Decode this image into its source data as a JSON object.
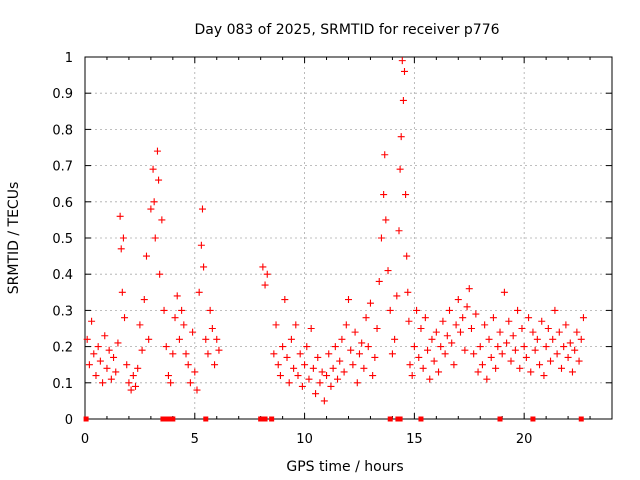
{
  "chart_data": {
    "type": "scatter",
    "title": "Day 083 of 2025, SRMTID for receiver p776",
    "xlabel": "GPS time / hours",
    "ylabel": "SRMTID / TECUs",
    "xlim": [
      0,
      24
    ],
    "ylim": [
      0,
      1
    ],
    "xticks": [
      0,
      5,
      10,
      15,
      20
    ],
    "yticks": [
      0,
      0.1,
      0.2,
      0.3,
      0.4,
      0.5,
      0.6,
      0.7,
      0.8,
      0.9,
      1
    ],
    "grid": true,
    "marker": "+",
    "color": "#ff0000",
    "series": [
      {
        "name": "SRMTID",
        "points": [
          [
            0.1,
            0.22
          ],
          [
            0.2,
            0.15
          ],
          [
            0.3,
            0.27
          ],
          [
            0.4,
            0.18
          ],
          [
            0.5,
            0.12
          ],
          [
            0.6,
            0.2
          ],
          [
            0.7,
            0.16
          ],
          [
            0.8,
            0.1
          ],
          [
            0.9,
            0.23
          ],
          [
            1.0,
            0.14
          ],
          [
            1.1,
            0.19
          ],
          [
            1.2,
            0.11
          ],
          [
            1.3,
            0.17
          ],
          [
            1.4,
            0.13
          ],
          [
            1.5,
            0.21
          ],
          [
            1.6,
            0.56
          ],
          [
            1.65,
            0.47
          ],
          [
            1.7,
            0.35
          ],
          [
            1.75,
            0.5
          ],
          [
            1.8,
            0.28
          ],
          [
            1.9,
            0.15
          ],
          [
            2.0,
            0.1
          ],
          [
            2.1,
            0.08
          ],
          [
            2.2,
            0.12
          ],
          [
            2.3,
            0.09
          ],
          [
            2.4,
            0.14
          ],
          [
            2.5,
            0.26
          ],
          [
            2.6,
            0.19
          ],
          [
            2.7,
            0.33
          ],
          [
            2.8,
            0.45
          ],
          [
            2.9,
            0.22
          ],
          [
            3.0,
            0.58
          ],
          [
            3.1,
            0.69
          ],
          [
            3.15,
            0.6
          ],
          [
            3.2,
            0.5
          ],
          [
            3.3,
            0.74
          ],
          [
            3.35,
            0.66
          ],
          [
            3.4,
            0.4
          ],
          [
            3.5,
            0.55
          ],
          [
            3.6,
            0.3
          ],
          [
            3.7,
            0.2
          ],
          [
            3.8,
            0.12
          ],
          [
            3.9,
            0.1
          ],
          [
            4.0,
            0.18
          ],
          [
            4.1,
            0.28
          ],
          [
            4.2,
            0.34
          ],
          [
            4.3,
            0.22
          ],
          [
            4.4,
            0.3
          ],
          [
            4.5,
            0.26
          ],
          [
            4.6,
            0.18
          ],
          [
            4.7,
            0.15
          ],
          [
            4.8,
            0.1
          ],
          [
            4.9,
            0.24
          ],
          [
            5.0,
            0.13
          ],
          [
            5.1,
            0.08
          ],
          [
            5.2,
            0.35
          ],
          [
            5.3,
            0.48
          ],
          [
            5.35,
            0.58
          ],
          [
            5.4,
            0.42
          ],
          [
            5.5,
            0.22
          ],
          [
            5.6,
            0.18
          ],
          [
            5.7,
            0.3
          ],
          [
            5.8,
            0.25
          ],
          [
            5.9,
            0.15
          ],
          [
            6.0,
            0.22
          ],
          [
            6.1,
            0.19
          ],
          [
            8.1,
            0.42
          ],
          [
            8.2,
            0.37
          ],
          [
            8.3,
            0.4
          ],
          [
            8.6,
            0.18
          ],
          [
            8.7,
            0.26
          ],
          [
            8.8,
            0.15
          ],
          [
            8.9,
            0.12
          ],
          [
            9.0,
            0.2
          ],
          [
            9.1,
            0.33
          ],
          [
            9.2,
            0.17
          ],
          [
            9.3,
            0.1
          ],
          [
            9.4,
            0.22
          ],
          [
            9.5,
            0.14
          ],
          [
            9.6,
            0.26
          ],
          [
            9.7,
            0.12
          ],
          [
            9.8,
            0.18
          ],
          [
            9.9,
            0.09
          ],
          [
            10.0,
            0.15
          ],
          [
            10.1,
            0.2
          ],
          [
            10.2,
            0.11
          ],
          [
            10.3,
            0.25
          ],
          [
            10.4,
            0.14
          ],
          [
            10.5,
            0.07
          ],
          [
            10.6,
            0.17
          ],
          [
            10.7,
            0.1
          ],
          [
            10.8,
            0.13
          ],
          [
            10.9,
            0.05
          ],
          [
            11.0,
            0.12
          ],
          [
            11.1,
            0.18
          ],
          [
            11.2,
            0.09
          ],
          [
            11.3,
            0.14
          ],
          [
            11.4,
            0.2
          ],
          [
            11.5,
            0.11
          ],
          [
            11.6,
            0.16
          ],
          [
            11.7,
            0.22
          ],
          [
            11.8,
            0.13
          ],
          [
            11.9,
            0.26
          ],
          [
            12.0,
            0.33
          ],
          [
            12.1,
            0.19
          ],
          [
            12.2,
            0.15
          ],
          [
            12.3,
            0.24
          ],
          [
            12.4,
            0.1
          ],
          [
            12.5,
            0.18
          ],
          [
            12.6,
            0.21
          ],
          [
            12.7,
            0.14
          ],
          [
            12.8,
            0.28
          ],
          [
            12.9,
            0.2
          ],
          [
            13.0,
            0.32
          ],
          [
            13.1,
            0.12
          ],
          [
            13.2,
            0.17
          ],
          [
            13.3,
            0.25
          ],
          [
            13.4,
            0.38
          ],
          [
            13.5,
            0.5
          ],
          [
            13.6,
            0.62
          ],
          [
            13.65,
            0.73
          ],
          [
            13.7,
            0.55
          ],
          [
            13.8,
            0.41
          ],
          [
            13.9,
            0.3
          ],
          [
            14.0,
            0.18
          ],
          [
            14.1,
            0.22
          ],
          [
            14.2,
            0.34
          ],
          [
            14.3,
            0.52
          ],
          [
            14.35,
            0.69
          ],
          [
            14.4,
            0.78
          ],
          [
            14.45,
            0.99
          ],
          [
            14.5,
            0.88
          ],
          [
            14.55,
            0.96
          ],
          [
            14.6,
            0.62
          ],
          [
            14.65,
            0.45
          ],
          [
            14.7,
            0.35
          ],
          [
            14.75,
            0.27
          ],
          [
            14.8,
            0.15
          ],
          [
            14.9,
            0.12
          ],
          [
            15.0,
            0.2
          ],
          [
            15.1,
            0.3
          ],
          [
            15.2,
            0.17
          ],
          [
            15.3,
            0.25
          ],
          [
            15.4,
            0.14
          ],
          [
            15.5,
            0.28
          ],
          [
            15.6,
            0.19
          ],
          [
            15.7,
            0.11
          ],
          [
            15.8,
            0.22
          ],
          [
            15.9,
            0.16
          ],
          [
            16.0,
            0.24
          ],
          [
            16.1,
            0.13
          ],
          [
            16.2,
            0.2
          ],
          [
            16.3,
            0.27
          ],
          [
            16.4,
            0.18
          ],
          [
            16.5,
            0.23
          ],
          [
            16.6,
            0.3
          ],
          [
            16.7,
            0.21
          ],
          [
            16.8,
            0.15
          ],
          [
            16.9,
            0.26
          ],
          [
            17.0,
            0.33
          ],
          [
            17.1,
            0.24
          ],
          [
            17.2,
            0.28
          ],
          [
            17.3,
            0.19
          ],
          [
            17.4,
            0.31
          ],
          [
            17.5,
            0.36
          ],
          [
            17.6,
            0.25
          ],
          [
            17.7,
            0.18
          ],
          [
            17.8,
            0.29
          ],
          [
            17.9,
            0.13
          ],
          [
            18.0,
            0.2
          ],
          [
            18.1,
            0.15
          ],
          [
            18.2,
            0.26
          ],
          [
            18.3,
            0.11
          ],
          [
            18.4,
            0.22
          ],
          [
            18.5,
            0.17
          ],
          [
            18.6,
            0.28
          ],
          [
            18.7,
            0.14
          ],
          [
            18.8,
            0.2
          ],
          [
            18.9,
            0.24
          ],
          [
            19.0,
            0.18
          ],
          [
            19.1,
            0.35
          ],
          [
            19.2,
            0.21
          ],
          [
            19.3,
            0.27
          ],
          [
            19.4,
            0.16
          ],
          [
            19.5,
            0.23
          ],
          [
            19.6,
            0.19
          ],
          [
            19.7,
            0.3
          ],
          [
            19.8,
            0.14
          ],
          [
            19.9,
            0.25
          ],
          [
            20.0,
            0.2
          ],
          [
            20.1,
            0.17
          ],
          [
            20.2,
            0.28
          ],
          [
            20.3,
            0.13
          ],
          [
            20.4,
            0.24
          ],
          [
            20.5,
            0.19
          ],
          [
            20.6,
            0.22
          ],
          [
            20.7,
            0.15
          ],
          [
            20.8,
            0.27
          ],
          [
            20.9,
            0.12
          ],
          [
            21.0,
            0.2
          ],
          [
            21.1,
            0.25
          ],
          [
            21.2,
            0.16
          ],
          [
            21.3,
            0.22
          ],
          [
            21.4,
            0.3
          ],
          [
            21.5,
            0.18
          ],
          [
            21.6,
            0.24
          ],
          [
            21.7,
            0.14
          ],
          [
            21.8,
            0.2
          ],
          [
            21.9,
            0.26
          ],
          [
            22.0,
            0.17
          ],
          [
            22.1,
            0.21
          ],
          [
            22.2,
            0.13
          ],
          [
            22.3,
            0.19
          ],
          [
            22.4,
            0.24
          ],
          [
            22.5,
            0.16
          ],
          [
            22.6,
            0.22
          ],
          [
            22.7,
            0.28
          ]
        ]
      }
    ],
    "zero_markers": [
      0.05,
      3.55,
      3.7,
      3.85,
      4.0,
      5.5,
      8.0,
      8.2,
      8.5,
      13.9,
      14.25,
      14.35,
      15.3,
      18.9,
      20.4,
      22.6
    ]
  }
}
